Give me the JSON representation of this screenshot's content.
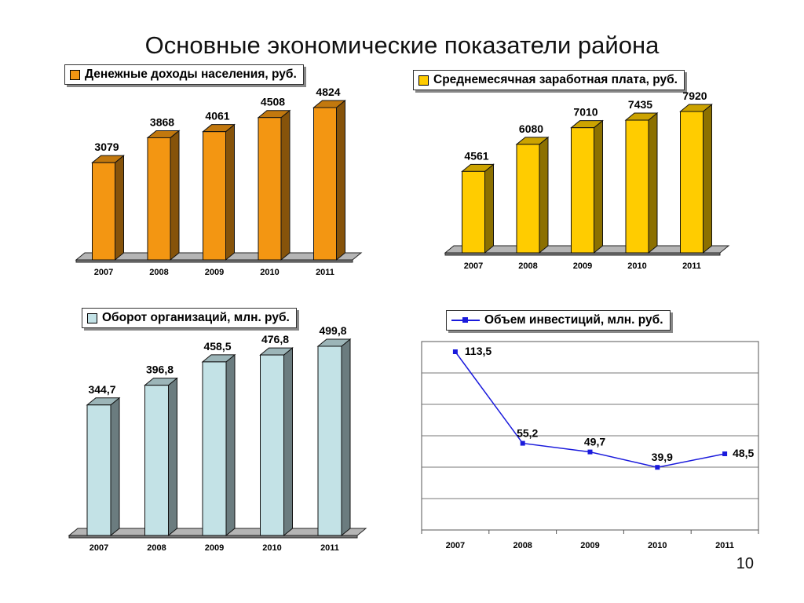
{
  "page": {
    "title": "Основные экономические показатели района",
    "page_number": "10"
  },
  "colors": {
    "orange": "#f39612",
    "yellow": "#ffcc00",
    "lightblue": "#c3e2e6",
    "line": "#1a1adc"
  },
  "legends": {
    "income": "Денежные доходы населения, руб.",
    "salary": "Среднемесячная заработная плата, руб.",
    "turnover": "Оборот организаций, млн. руб.",
    "investment": "Объем инвестиций, млн. руб."
  },
  "chart_data": [
    {
      "type": "bar",
      "categories": [
        "2007",
        "2008",
        "2009",
        "2010",
        "2011"
      ],
      "series": [
        {
          "name": "Денежные доходы населения, руб.",
          "values": [
            3079,
            3868,
            4061,
            4508,
            4824
          ],
          "labels": [
            "3079",
            "3868",
            "4061",
            "4508",
            "4824"
          ]
        }
      ],
      "ylim": [
        0,
        4824
      ],
      "grid": false,
      "legend": "top"
    },
    {
      "type": "bar",
      "categories": [
        "2007",
        "2008",
        "2009",
        "2010",
        "2011"
      ],
      "series": [
        {
          "name": "Среднемесячная заработная плата, руб.",
          "values": [
            4561,
            6080,
            7010,
            7435,
            7920
          ],
          "labels": [
            "4561",
            "6080",
            "7010",
            "7435",
            "7920"
          ]
        }
      ],
      "ylim": [
        0,
        7920
      ],
      "grid": false,
      "legend": "top"
    },
    {
      "type": "bar",
      "categories": [
        "2007",
        "2008",
        "2009",
        "2010",
        "2011"
      ],
      "series": [
        {
          "name": "Оборот организаций, млн. руб.",
          "values": [
            344.7,
            396.8,
            458.5,
            476.8,
            499.8
          ],
          "labels": [
            "344,7",
            "396,8",
            "458,5",
            "476,8",
            "499,8"
          ]
        }
      ],
      "ylim": [
        0,
        499.8
      ],
      "grid": false,
      "legend": "top"
    },
    {
      "type": "line",
      "categories": [
        "2007",
        "2008",
        "2009",
        "2010",
        "2011"
      ],
      "series": [
        {
          "name": "Объем инвестиций, млн. руб.",
          "values": [
            113.5,
            55.2,
            49.7,
            39.9,
            48.5
          ],
          "labels": [
            "113,5",
            "55,2",
            "49,7",
            "39,9",
            "48,5"
          ]
        }
      ],
      "ylim": [
        0,
        120
      ],
      "grid": true,
      "legend": "top"
    }
  ]
}
